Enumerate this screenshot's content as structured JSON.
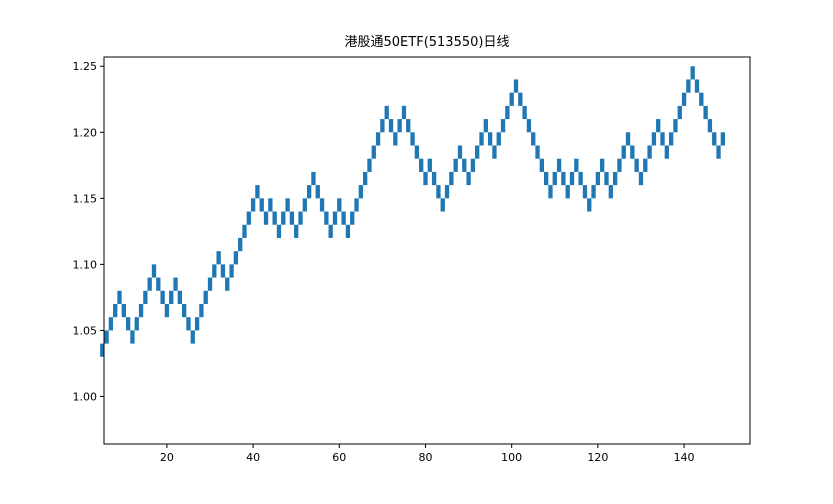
{
  "chart_data": {
    "type": "renko",
    "title": "港股通50ETF(513550)日线",
    "x": [
      5,
      6,
      7,
      8,
      9,
      10,
      11,
      12,
      13,
      14,
      15,
      16,
      17,
      18,
      19,
      20,
      21,
      22,
      23,
      24,
      25,
      26,
      27,
      28,
      29,
      30,
      31,
      32,
      33,
      34,
      35,
      36,
      37,
      38,
      39,
      40,
      41,
      42,
      43,
      44,
      45,
      46,
      47,
      48,
      49,
      50,
      51,
      52,
      53,
      54,
      55,
      56,
      57,
      58,
      59,
      60,
      61,
      62,
      63,
      64,
      65,
      66,
      67,
      68,
      69,
      70,
      71,
      72,
      73,
      74,
      75,
      76,
      77,
      78,
      79,
      80,
      81,
      82,
      83,
      84,
      85,
      86,
      87,
      88,
      89,
      90,
      91,
      92,
      93,
      94,
      95,
      96,
      97,
      98,
      99,
      100,
      101,
      102,
      103,
      104,
      105,
      106,
      107,
      108,
      109,
      110,
      111,
      112,
      113,
      114,
      115,
      116,
      117,
      118,
      119,
      120,
      121,
      122,
      123,
      124,
      125,
      126,
      127,
      128,
      129,
      130,
      131,
      132,
      133,
      134,
      135,
      136,
      137,
      138,
      139,
      140,
      141,
      142,
      143,
      144,
      145,
      146,
      147,
      148,
      149
    ],
    "values": [
      1.03,
      1.04,
      1.05,
      1.06,
      1.07,
      1.06,
      1.05,
      1.04,
      1.05,
      1.06,
      1.07,
      1.08,
      1.09,
      1.08,
      1.07,
      1.06,
      1.07,
      1.08,
      1.07,
      1.06,
      1.05,
      1.04,
      1.05,
      1.06,
      1.07,
      1.08,
      1.09,
      1.1,
      1.09,
      1.08,
      1.09,
      1.1,
      1.11,
      1.12,
      1.13,
      1.14,
      1.15,
      1.14,
      1.13,
      1.14,
      1.13,
      1.12,
      1.13,
      1.14,
      1.13,
      1.12,
      1.13,
      1.14,
      1.15,
      1.16,
      1.15,
      1.14,
      1.13,
      1.12,
      1.13,
      1.14,
      1.13,
      1.12,
      1.13,
      1.14,
      1.15,
      1.16,
      1.17,
      1.18,
      1.19,
      1.2,
      1.21,
      1.2,
      1.19,
      1.2,
      1.21,
      1.2,
      1.19,
      1.18,
      1.17,
      1.16,
      1.17,
      1.16,
      1.15,
      1.14,
      1.15,
      1.16,
      1.17,
      1.18,
      1.17,
      1.16,
      1.17,
      1.18,
      1.19,
      1.2,
      1.19,
      1.18,
      1.19,
      1.2,
      1.21,
      1.22,
      1.23,
      1.22,
      1.21,
      1.2,
      1.19,
      1.18,
      1.17,
      1.16,
      1.15,
      1.16,
      1.17,
      1.16,
      1.15,
      1.16,
      1.17,
      1.16,
      1.15,
      1.14,
      1.15,
      1.16,
      1.17,
      1.16,
      1.15,
      1.16,
      1.17,
      1.18,
      1.19,
      1.18,
      1.17,
      1.16,
      1.17,
      1.18,
      1.19,
      1.2,
      1.19,
      1.18,
      1.19,
      1.2,
      1.21,
      1.22,
      1.23,
      1.24,
      1.23,
      1.22,
      1.21,
      1.2,
      1.19,
      1.18,
      1.19
    ],
    "brick_size": 0.01,
    "color": "#1f77b4",
    "xlim": [
      5.4,
      155.3
    ],
    "ylim": [
      0.964,
      1.257
    ],
    "xticks": [
      20,
      40,
      60,
      80,
      100,
      120,
      140
    ],
    "yticks": [
      {
        "value": 1,
        "label": "1.00"
      },
      1.05,
      {
        "value": 1.1,
        "label": "1.10"
      },
      1.15,
      {
        "value": 1.2,
        "label": "1.20"
      },
      1.25
    ]
  }
}
